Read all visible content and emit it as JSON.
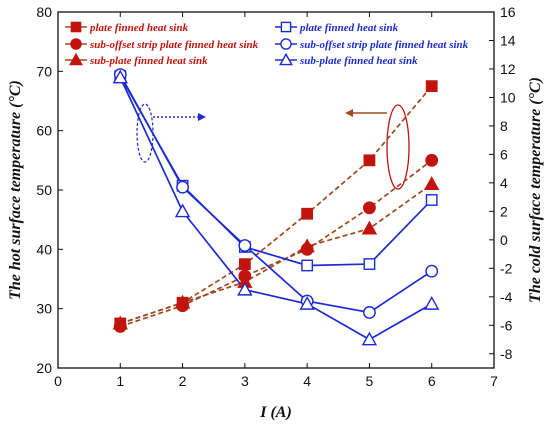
{
  "chart_data": {
    "type": "line",
    "xlabel": "I (A)",
    "xlim": [
      0,
      7
    ],
    "xticks": [
      0,
      1,
      2,
      3,
      4,
      5,
      6,
      7
    ],
    "y_left": {
      "label": "The hot surface temperature (°C)",
      "lim": [
        20,
        80
      ],
      "ticks": [
        20,
        30,
        40,
        50,
        60,
        70,
        80
      ]
    },
    "y_right": {
      "label": "The cold surface temperature (°C)",
      "lim": [
        -9,
        16
      ],
      "ticks": [
        -8,
        -6,
        -4,
        -2,
        0,
        2,
        4,
        6,
        8,
        10,
        12,
        14,
        16
      ]
    },
    "x": [
      1,
      2,
      3,
      4,
      5,
      6
    ],
    "series": [
      {
        "name": "plate finned heat sink",
        "axis": "left",
        "color": "#c0140c",
        "line_color": "#a0481f",
        "marker": "square",
        "fill": "filled",
        "values": [
          27.5,
          31,
          37.5,
          46,
          55,
          67.5
        ]
      },
      {
        "name": "sub-offset strip plate finned heat sink",
        "axis": "left",
        "color": "#c0140c",
        "line_color": "#a0481f",
        "marker": "circle",
        "fill": "filled",
        "values": [
          27,
          30.5,
          35.5,
          40,
          47,
          55
        ]
      },
      {
        "name": "sub-plate finned heat sink",
        "axis": "left",
        "color": "#c0140c",
        "line_color": "#a0481f",
        "marker": "triangle",
        "fill": "filled",
        "values": [
          27.5,
          31,
          34.5,
          40.5,
          43.5,
          51
        ]
      },
      {
        "name": "plate finned heat sink",
        "axis": "right",
        "color": "#1c2bd0",
        "line_color": "#1c2bd0",
        "marker": "square",
        "fill": "open",
        "values": [
          11.5,
          3.8,
          -0.5,
          -1.8,
          -1.7,
          2.8
        ]
      },
      {
        "name": "sub-offset strip plate finned heat sink",
        "axis": "right",
        "color": "#1c2bd0",
        "line_color": "#1c2bd0",
        "marker": "circle",
        "fill": "open",
        "values": [
          11.6,
          3.7,
          -0.4,
          -4.3,
          -5.1,
          -2.2
        ]
      },
      {
        "name": "sub-plate finned heat sink",
        "axis": "right",
        "color": "#1c2bd0",
        "line_color": "#1c2bd0",
        "marker": "triangle",
        "fill": "open",
        "values": [
          11.4,
          2.0,
          -3.5,
          -4.5,
          -7.0,
          -4.5
        ]
      }
    ],
    "legend_placement": "top",
    "grid": false
  }
}
